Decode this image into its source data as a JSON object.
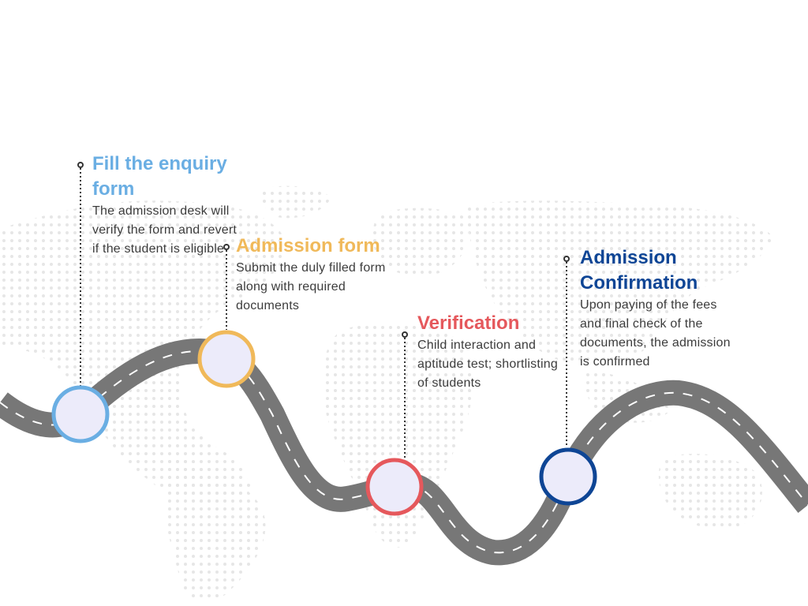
{
  "steps": [
    {
      "title": "Fill the enquiry form",
      "description": "The admission desk will verify the form and revert if the student is eligible",
      "color": "#6aaee3"
    },
    {
      "title": "Admission form",
      "description": "Submit the duly filled form along with required documents",
      "color": "#f0b95a"
    },
    {
      "title": "Verification",
      "description": "Child interaction and aptitude test; shortlisting of students",
      "color": "#e5585c"
    },
    {
      "title": "Admission Confirmation",
      "description": "Upon paying of the fees and final check of the documents, the admission is confirmed",
      "color": "#0e4595"
    }
  ],
  "colors": {
    "road": "#777777",
    "road_dash": "#ffffff",
    "milestone_fill": "#ecebfa",
    "map_dots": "#e6e6e6",
    "connector": "#333333"
  }
}
